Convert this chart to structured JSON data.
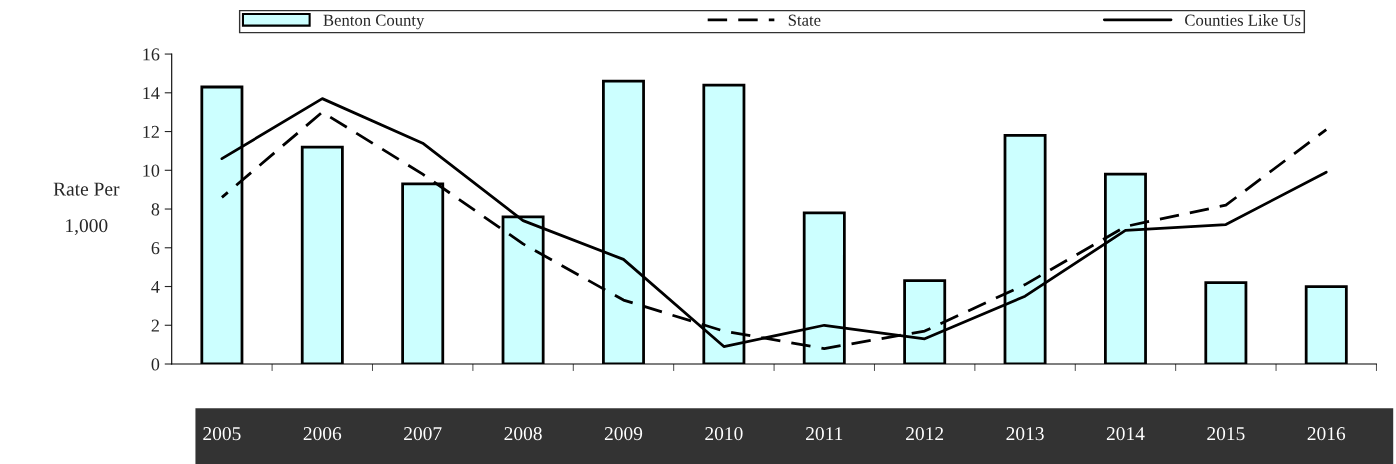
{
  "chart_data": {
    "type": "bar",
    "ylabel": "Rate Per\n1,000",
    "categories": [
      "2005",
      "2006",
      "2007",
      "2008",
      "2009",
      "2010",
      "2011",
      "2012",
      "2013",
      "2014",
      "2015",
      "2016"
    ],
    "series": [
      {
        "name": "Benton County",
        "color": "#ccffff",
        "values": [
          14.3,
          11.2,
          9.3,
          7.6,
          14.6,
          14.4,
          7.8,
          4.3,
          11.8,
          9.8,
          4.2,
          4.0
        ]
      },
      {
        "name": "State",
        "type": "line",
        "color": "#000000",
        "line_style": "dashed",
        "values": [
          8.6,
          13.0,
          9.8,
          6.2,
          3.3,
          1.7,
          0.8,
          1.7,
          4.1,
          7.1,
          8.2,
          12.1
        ]
      },
      {
        "name": "Counties Like Us",
        "type": "line",
        "color": "#000000",
        "line_style": "solid",
        "values": [
          10.6,
          13.7,
          11.4,
          7.4,
          5.4,
          0.9,
          2.0,
          1.3,
          3.5,
          6.9,
          7.2,
          9.9
        ]
      }
    ],
    "ylim": [
      0,
      16
    ],
    "yticks": [
      0,
      2,
      4,
      6,
      8,
      10,
      12,
      14,
      16
    ],
    "grid": false,
    "legend": "top",
    "marker": "none"
  }
}
